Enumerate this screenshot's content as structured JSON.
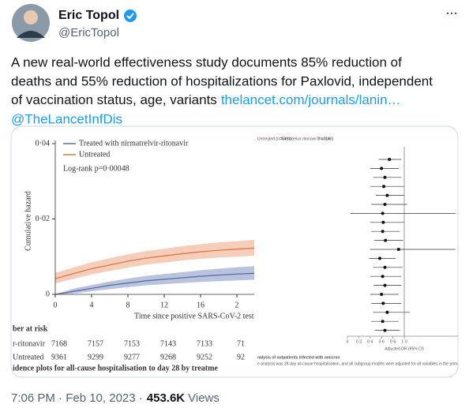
{
  "header": {
    "name": "Eric Topol",
    "handle": "@EricTopol",
    "more": "···"
  },
  "tweet": {
    "lines": [
      "A new real-world effectiveness study documents 85% reduction of",
      "deaths and 55% reduction of hospitalizations for Paxlovid, independent",
      "of vaccination status, age, variants"
    ],
    "link": "thelancet.com/journals/lanin…",
    "mention": "@TheLancetInfDis"
  },
  "image": {
    "chart_data": {
      "type": "line",
      "ylabel": "Cumulative hazard",
      "xlabel": "Time since positive SARS-CoV-2 test (",
      "annotation": "Log-rank p=0·00048",
      "x": [
        0,
        2,
        4,
        6,
        8,
        10,
        12,
        14,
        16,
        18,
        20,
        22
      ],
      "xlim": [
        0,
        22
      ],
      "xticks": [
        0,
        4,
        8,
        12,
        16,
        {
          "value": 20,
          "label": "2"
        }
      ],
      "ylim": [
        0,
        0.04
      ],
      "yticks": [
        0,
        {
          "value": 0.02,
          "label": "0·02"
        },
        {
          "value": 0.04,
          "label": "0·04"
        }
      ],
      "series": [
        {
          "name": "Treated with nirmatrelvir-ritonavir",
          "color": "#5a6ea6",
          "band_color": "#a9b4d6",
          "values": [
            0,
            0.0008,
            0.0016,
            0.0024,
            0.003,
            0.0036,
            0.004,
            0.0044,
            0.0048,
            0.0051,
            0.0054,
            0.0056
          ],
          "lower": [
            0,
            0.0002,
            0.0008,
            0.0014,
            0.0019,
            0.0024,
            0.0027,
            0.003,
            0.0033,
            0.0035,
            0.0037,
            0.0039
          ],
          "upper": [
            0,
            0.0015,
            0.0025,
            0.0034,
            0.0042,
            0.0049,
            0.0054,
            0.0059,
            0.0064,
            0.0068,
            0.0072,
            0.0075
          ]
        },
        {
          "name": "Untreated",
          "color": "#d9784c",
          "band_color": "#f3c1a7",
          "values": [
            0.0042,
            0.0055,
            0.0068,
            0.0078,
            0.0088,
            0.0096,
            0.0102,
            0.0108,
            0.0113,
            0.0117,
            0.012,
            0.0123
          ],
          "lower": [
            0.0029,
            0.0041,
            0.0053,
            0.0062,
            0.0071,
            0.0079,
            0.0084,
            0.009,
            0.0094,
            0.0098,
            0.01,
            0.0103
          ],
          "upper": [
            0.0057,
            0.0071,
            0.0085,
            0.0096,
            0.0106,
            0.0115,
            0.0121,
            0.0128,
            0.0133,
            0.0138,
            0.0141,
            0.0145
          ]
        }
      ]
    },
    "risk_table": {
      "title": "ber at risk",
      "rows": [
        {
          "label": "r-ritonavir",
          "values": [
            7168,
            7157,
            7153,
            7143,
            7133,
            71
          ]
        },
        {
          "label": "Untreated",
          "values": [
            9361,
            9299,
            9277,
            9268,
            9252,
            92
          ]
        }
      ]
    },
    "caption": "idence plots for all-cause hospitalisation to day 28 by treatme",
    "forest": {
      "headers": [
        "Untreated (n=9361)",
        "Nirmatrelvir-ritonavir (n=7168)",
        "P value"
      ],
      "xlabel": "Adjusted OR (95% CI)",
      "xlim": [
        0,
        2
      ],
      "xticks": [
        0,
        {
          "value": 0.2,
          "label": "0·2"
        },
        {
          "value": 0.4,
          "label": "0·4"
        },
        {
          "value": 0.6,
          "label": "0·6"
        },
        {
          "value": 0.8,
          "label": "0·8"
        },
        {
          "value": 1,
          "label": "1·0"
        }
      ],
      "rows": [
        {
          "estimate": 0.74,
          "lower": 0.55,
          "upper": 0.95
        },
        {
          "estimate": 0.6,
          "lower": 0.4,
          "upper": 0.9
        },
        {
          "estimate": 0.66,
          "lower": 0.45,
          "upper": 0.95
        },
        {
          "estimate": 0.64,
          "lower": 0.4,
          "upper": 1.0
        },
        {
          "estimate": 0.7,
          "lower": 0.5,
          "upper": 1.0
        },
        {
          "estimate": 0.66,
          "lower": 0.42,
          "upper": 1.05
        },
        {
          "estimate": 0.62,
          "lower": 0.05,
          "upper": 1.9
        },
        {
          "estimate": 0.63,
          "lower": 0.4,
          "upper": 1.0
        },
        {
          "estimate": 0.62,
          "lower": 0.42,
          "upper": 0.92
        },
        {
          "estimate": 0.67,
          "lower": 0.47,
          "upper": 0.98
        },
        {
          "estimate": 0.9,
          "lower": 0.4,
          "upper": 1.9
        },
        {
          "estimate": 0.57,
          "lower": 0.38,
          "upper": 0.85
        },
        {
          "estimate": 0.66,
          "lower": 0.45,
          "upper": 0.97
        },
        {
          "estimate": 0.62,
          "lower": 0.4,
          "upper": 0.95
        },
        {
          "estimate": 0.66,
          "lower": 0.46,
          "upper": 0.95
        },
        {
          "estimate": 0.6,
          "lower": 0.4,
          "upper": 0.9
        },
        {
          "estimate": 0.63,
          "lower": 0.42,
          "upper": 0.95
        },
        {
          "estimate": 0.7,
          "lower": 0.45,
          "upper": 1.1
        },
        {
          "estimate": 0.62,
          "lower": 0.42,
          "upper": 0.9
        },
        {
          "estimate": 0.66,
          "lower": 0.48,
          "upper": 0.92
        }
      ],
      "note_title": "nalysis of outpatients infected with omicron",
      "note": "e analysis was 28-day all-cause hospitalisation, and all subgroup models were adjusted for all variables in the primary analysis"
    }
  },
  "footer": {
    "time": "7:06 PM · Feb 10, 2023 ·",
    "views": "453.6K",
    "views_label": "Views"
  }
}
